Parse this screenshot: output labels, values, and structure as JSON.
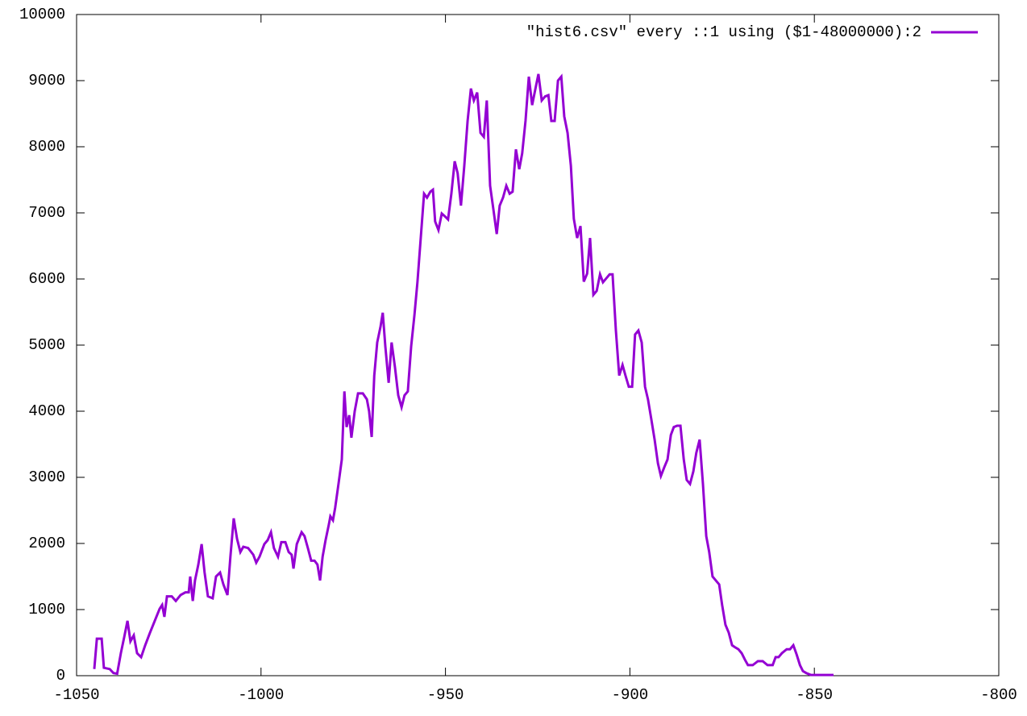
{
  "chart_data": {
    "type": "line",
    "x": [
      -1045.2,
      -1044.5,
      -1043.2,
      -1042.6,
      -1041,
      -1040,
      -1039,
      -1038,
      -1037.1,
      -1036.2,
      -1035.4,
      -1034.5,
      -1033.6,
      -1032.5,
      -1031.4,
      -1030.1,
      -1028.8,
      -1027.5,
      -1026.8,
      -1026.2,
      -1025.5,
      -1024.2,
      -1023.1,
      -1021.8,
      -1020.5,
      -1019.6,
      -1019.2,
      -1018.5,
      -1017.9,
      -1017,
      -1016.1,
      -1015.3,
      -1014.4,
      -1013.1,
      -1012.2,
      -1011.1,
      -1010.2,
      -1009.1,
      -1008.3,
      -1007.4,
      -1006.5,
      -1005.6,
      -1004.8,
      -1003.5,
      -1002.1,
      -1001.3,
      -1000.4,
      -999.1,
      -998.2,
      -997.3,
      -996.5,
      -995.4,
      -994.5,
      -993.4,
      -992.5,
      -991.7,
      -991.2,
      -990.3,
      -989,
      -988.2,
      -987.3,
      -986.4,
      -985.5,
      -984.7,
      -984,
      -983.3,
      -982.5,
      -981.6,
      -981.2,
      -980.5,
      -979.9,
      -979,
      -978.1,
      -977.4,
      -976.8,
      -976.1,
      -975.5,
      -974.6,
      -973.7,
      -972.4,
      -971.3,
      -970.7,
      -970,
      -969.3,
      -968.5,
      -967.6,
      -967,
      -966.3,
      -965.4,
      -964.6,
      -963.7,
      -962.8,
      -961.9,
      -961.1,
      -960.2,
      -959.3,
      -958.4,
      -957.6,
      -956.7,
      -955.8,
      -955,
      -954.1,
      -953.4,
      -952.8,
      -951.9,
      -951,
      -950.2,
      -949.3,
      -948.4,
      -947.5,
      -946.7,
      -945.8,
      -944.9,
      -944,
      -943.1,
      -942.3,
      -941.4,
      -940.5,
      -939.6,
      -938.8,
      -937.9,
      -937,
      -936.1,
      -935.3,
      -934.4,
      -933.5,
      -932.6,
      -931.8,
      -930.9,
      -930,
      -929.2,
      -928.3,
      -927.4,
      -926.5,
      -925.6,
      -924.8,
      -923.9,
      -923,
      -922.1,
      -921.3,
      -920.4,
      -919.5,
      -918.6,
      -917.8,
      -916.9,
      -916,
      -915.2,
      -914.3,
      -913.4,
      -912.5,
      -911.6,
      -910.8,
      -909.9,
      -909,
      -908.1,
      -907.3,
      -906.4,
      -905.5,
      -904.7,
      -903.8,
      -902.9,
      -902,
      -901.2,
      -900.3,
      -899.4,
      -898.6,
      -897.7,
      -896.8,
      -895.9,
      -895.1,
      -894.2,
      -893.3,
      -892.4,
      -891.6,
      -890.7,
      -889.8,
      -888.9,
      -888.1,
      -887.2,
      -886.3,
      -885.4,
      -884.6,
      -883.7,
      -882.8,
      -882,
      -881.1,
      -880.2,
      -879.3,
      -878.5,
      -877.6,
      -876.7,
      -875.8,
      -875,
      -874.1,
      -873.2,
      -872.3,
      -871.5,
      -870.6,
      -869.7,
      -868.8,
      -868,
      -866.7,
      -865.3,
      -864,
      -862.7,
      -861.3,
      -860.5,
      -859.7,
      -858.8,
      -857.5,
      -856.6,
      -855.7,
      -854.8,
      -853.9,
      -853.1,
      -852.2,
      -850.9,
      -847.9,
      -844.8
    ],
    "series": [
      {
        "name": "\"hist6.csv\" every ::1 using ($1-48000000):2",
        "color": "#9400d3",
        "values": [
          100,
          560,
          560,
          120,
          100,
          40,
          30,
          340,
          580,
          830,
          520,
          610,
          340,
          280,
          460,
          650,
          830,
          1010,
          1070,
          890,
          1200,
          1200,
          1130,
          1220,
          1260,
          1260,
          1500,
          1130,
          1440,
          1680,
          1990,
          1560,
          1200,
          1170,
          1500,
          1560,
          1380,
          1220,
          1800,
          2380,
          2070,
          1870,
          1950,
          1930,
          1830,
          1710,
          1800,
          1990,
          2050,
          2170,
          1930,
          1800,
          2020,
          2020,
          1870,
          1830,
          1620,
          1990,
          2170,
          2110,
          1930,
          1740,
          1740,
          1680,
          1440,
          1800,
          2050,
          2290,
          2410,
          2350,
          2540,
          2900,
          3270,
          4300,
          3760,
          3940,
          3600,
          4000,
          4270,
          4270,
          4180,
          4000,
          3610,
          4540,
          5040,
          5280,
          5490,
          4980,
          4430,
          5040,
          4670,
          4240,
          4060,
          4240,
          4300,
          4980,
          5460,
          5950,
          6620,
          7290,
          7230,
          7320,
          7350,
          6870,
          6740,
          6990,
          6950,
          6900,
          7290,
          7780,
          7600,
          7110,
          7710,
          8390,
          8880,
          8700,
          8820,
          8210,
          8150,
          8700,
          7410,
          7050,
          6680,
          7110,
          7230,
          7410,
          7290,
          7320,
          7960,
          7660,
          7900,
          8390,
          9060,
          8630,
          8880,
          9100,
          8700,
          8760,
          8780,
          8390,
          8390,
          9000,
          9060,
          8460,
          8210,
          7710,
          6910,
          6620,
          6800,
          5960,
          6080,
          6620,
          5760,
          5820,
          6070,
          5950,
          6010,
          6070,
          6070,
          5220,
          4540,
          4700,
          4540,
          4370,
          4370,
          5160,
          5220,
          5040,
          4370,
          4180,
          3880,
          3570,
          3210,
          3020,
          3150,
          3270,
          3640,
          3760,
          3780,
          3780,
          3270,
          2960,
          2900,
          3090,
          3370,
          3570,
          2900,
          2110,
          1870,
          1500,
          1440,
          1380,
          1070,
          770,
          650,
          460,
          430,
          400,
          340,
          240,
          160,
          160,
          220,
          220,
          160,
          160,
          280,
          280,
          340,
          400,
          400,
          460,
          320,
          160,
          70,
          40,
          10,
          10,
          10
        ]
      }
    ],
    "xlim": [
      -1050,
      -800
    ],
    "xticks": [
      -1050,
      -1000,
      -950,
      -900,
      -850,
      -800
    ],
    "ylim": [
      0,
      10000
    ],
    "yticks": [
      0,
      1000,
      2000,
      3000,
      4000,
      5000,
      6000,
      7000,
      8000,
      9000,
      10000
    ],
    "legend": "top right",
    "grid": false
  }
}
